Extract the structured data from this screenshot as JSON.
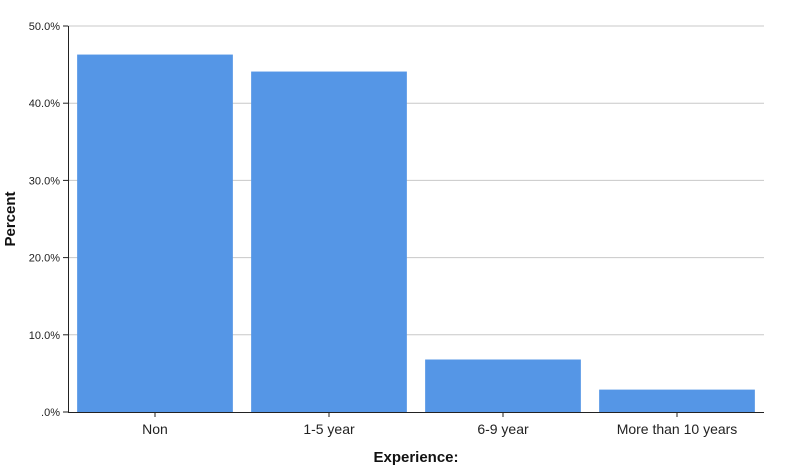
{
  "chart_data": {
    "type": "bar",
    "categories": [
      "Non",
      "1-5 year",
      "6-9 year",
      "More than 10 years"
    ],
    "values": [
      46.3,
      44.1,
      6.8,
      2.9
    ],
    "xlabel": "Experience:",
    "ylabel": "Percent",
    "ylim": [
      0,
      50
    ],
    "yticks": [
      0,
      10,
      20,
      30,
      40,
      50
    ],
    "ytick_labels": [
      ".0%",
      "10.0%",
      "20.0%",
      "30.0%",
      "40.0%",
      "50.0%"
    ],
    "grid": true,
    "bar_color": "#5596e6"
  }
}
